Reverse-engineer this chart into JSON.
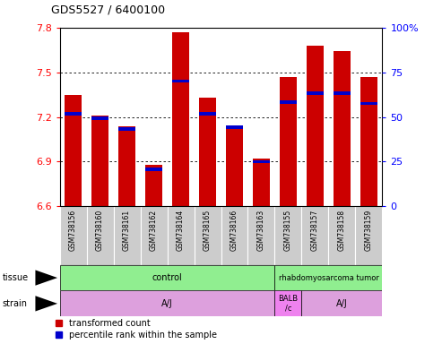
{
  "title": "GDS5527 / 6400100",
  "samples": [
    "GSM738156",
    "GSM738160",
    "GSM738161",
    "GSM738162",
    "GSM738164",
    "GSM738165",
    "GSM738166",
    "GSM738163",
    "GSM738155",
    "GSM738157",
    "GSM738158",
    "GSM738159"
  ],
  "red_values": [
    7.35,
    7.21,
    7.14,
    6.88,
    7.77,
    7.33,
    7.14,
    6.92,
    7.47,
    7.68,
    7.64,
    7.47
  ],
  "blue_values": [
    7.22,
    7.19,
    7.12,
    6.85,
    7.44,
    7.22,
    7.13,
    6.9,
    7.3,
    7.36,
    7.36,
    7.29
  ],
  "ymin": 6.6,
  "ymax": 7.8,
  "yticks": [
    6.6,
    6.9,
    7.2,
    7.5,
    7.8
  ],
  "right_yticks": [
    0,
    25,
    50,
    75,
    100
  ],
  "bar_color_red": "#CC0000",
  "bar_color_blue": "#0000CC",
  "legend_red": "transformed count",
  "legend_blue": "percentile rank within the sample",
  "tissue_groups": [
    {
      "label": "control",
      "start": 0,
      "end": 8,
      "color": "#90EE90"
    },
    {
      "label": "rhabdomyosarcoma tumor",
      "start": 8,
      "end": 12,
      "color": "#90EE90"
    }
  ],
  "strain_groups": [
    {
      "label": "A/J",
      "start": 0,
      "end": 8,
      "color": "#DDA0DD"
    },
    {
      "label": "BALB\n/c",
      "start": 8,
      "end": 9,
      "color": "#EE82EE"
    },
    {
      "label": "A/J",
      "start": 9,
      "end": 12,
      "color": "#DDA0DD"
    }
  ]
}
